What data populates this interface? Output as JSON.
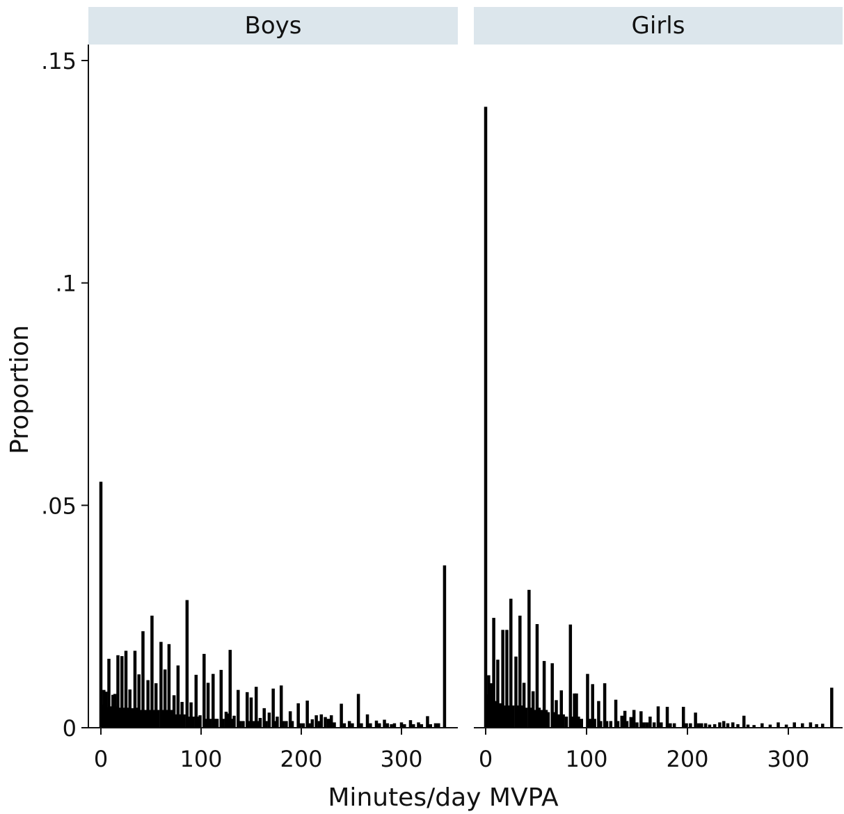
{
  "chart_data": {
    "type": "bar",
    "ylabel": "Proportion",
    "xlabel": "Minutes/day MVPA",
    "ylim": [
      0,
      0.15
    ],
    "yticks": [
      {
        "value": 0,
        "label": "0"
      },
      {
        "value": 0.05,
        "label": ".05"
      },
      {
        "value": 0.1,
        "label": ".1"
      },
      {
        "value": 0.15,
        "label": ".15"
      }
    ],
    "xlim": [
      -8,
      352
    ],
    "xticks": [
      {
        "value": 0,
        "label": "0"
      },
      {
        "value": 100,
        "label": "100"
      },
      {
        "value": 200,
        "label": "200"
      },
      {
        "value": 300,
        "label": "300"
      }
    ],
    "bar_color": "#000000",
    "strip_color": "#dce6ec",
    "grid": false,
    "panels": [
      {
        "name": "Boys",
        "series": [
          {
            "x": 0,
            "y": 0.0553
          },
          {
            "x": 1,
            "y": 0.0049
          },
          {
            "x": 2,
            "y": 0.0052
          },
          {
            "x": 3,
            "y": 0.0085
          },
          {
            "x": 4,
            "y": 0.0048
          },
          {
            "x": 5,
            "y": 0.0081
          },
          {
            "x": 6,
            "y": 0.0045
          },
          {
            "x": 7,
            "y": 0.0046
          },
          {
            "x": 8,
            "y": 0.0155
          },
          {
            "x": 10,
            "y": 0.0048
          },
          {
            "x": 12,
            "y": 0.0074
          },
          {
            "x": 13,
            "y": 0.0045
          },
          {
            "x": 14,
            "y": 0.0076
          },
          {
            "x": 16,
            "y": 0.0048
          },
          {
            "x": 17,
            "y": 0.0163
          },
          {
            "x": 19,
            "y": 0.0045
          },
          {
            "x": 21,
            "y": 0.0161
          },
          {
            "x": 23,
            "y": 0.0045
          },
          {
            "x": 25,
            "y": 0.0173
          },
          {
            "x": 27,
            "y": 0.0045
          },
          {
            "x": 29,
            "y": 0.0086
          },
          {
            "x": 30,
            "y": 0.004
          },
          {
            "x": 32,
            "y": 0.0044
          },
          {
            "x": 34,
            "y": 0.0173
          },
          {
            "x": 36,
            "y": 0.0045
          },
          {
            "x": 38,
            "y": 0.012
          },
          {
            "x": 40,
            "y": 0.004
          },
          {
            "x": 42,
            "y": 0.0217
          },
          {
            "x": 44,
            "y": 0.004
          },
          {
            "x": 47,
            "y": 0.0107
          },
          {
            "x": 49,
            "y": 0.004
          },
          {
            "x": 51,
            "y": 0.0252
          },
          {
            "x": 53,
            "y": 0.004
          },
          {
            "x": 55,
            "y": 0.01
          },
          {
            "x": 57,
            "y": 0.004
          },
          {
            "x": 60,
            "y": 0.0193
          },
          {
            "x": 62,
            "y": 0.004
          },
          {
            "x": 64,
            "y": 0.0131
          },
          {
            "x": 66,
            "y": 0.004
          },
          {
            "x": 68,
            "y": 0.0188
          },
          {
            "x": 70,
            "y": 0.004
          },
          {
            "x": 73,
            "y": 0.0073
          },
          {
            "x": 75,
            "y": 0.003
          },
          {
            "x": 77,
            "y": 0.014
          },
          {
            "x": 79,
            "y": 0.003
          },
          {
            "x": 81,
            "y": 0.0058
          },
          {
            "x": 83,
            "y": 0.003
          },
          {
            "x": 86,
            "y": 0.0287
          },
          {
            "x": 88,
            "y": 0.0025
          },
          {
            "x": 90,
            "y": 0.0057
          },
          {
            "x": 92,
            "y": 0.0025
          },
          {
            "x": 95,
            "y": 0.0119
          },
          {
            "x": 97,
            "y": 0.0025
          },
          {
            "x": 99,
            "y": 0.0028
          },
          {
            "x": 103,
            "y": 0.0166
          },
          {
            "x": 105,
            "y": 0.002
          },
          {
            "x": 107,
            "y": 0.0101
          },
          {
            "x": 109,
            "y": 0.002
          },
          {
            "x": 112,
            "y": 0.0121
          },
          {
            "x": 114,
            "y": 0.002
          },
          {
            "x": 116,
            "y": 0.002
          },
          {
            "x": 120,
            "y": 0.013
          },
          {
            "x": 122,
            "y": 0.002
          },
          {
            "x": 125,
            "y": 0.0036
          },
          {
            "x": 127,
            "y": 0.0032
          },
          {
            "x": 129,
            "y": 0.0175
          },
          {
            "x": 131,
            "y": 0.002
          },
          {
            "x": 133,
            "y": 0.0027
          },
          {
            "x": 137,
            "y": 0.0085
          },
          {
            "x": 139,
            "y": 0.0015
          },
          {
            "x": 142,
            "y": 0.0015
          },
          {
            "x": 146,
            "y": 0.008
          },
          {
            "x": 148,
            "y": 0.0015
          },
          {
            "x": 150,
            "y": 0.0068
          },
          {
            "x": 152,
            "y": 0.0015
          },
          {
            "x": 155,
            "y": 0.0092
          },
          {
            "x": 157,
            "y": 0.0015
          },
          {
            "x": 159,
            "y": 0.0022
          },
          {
            "x": 163,
            "y": 0.0044
          },
          {
            "x": 165,
            "y": 0.0015
          },
          {
            "x": 168,
            "y": 0.0034
          },
          {
            "x": 172,
            "y": 0.0088
          },
          {
            "x": 174,
            "y": 0.0015
          },
          {
            "x": 176,
            "y": 0.0025
          },
          {
            "x": 180,
            "y": 0.0095
          },
          {
            "x": 182,
            "y": 0.0015
          },
          {
            "x": 185,
            "y": 0.0015
          },
          {
            "x": 189,
            "y": 0.0037
          },
          {
            "x": 191,
            "y": 0.0015
          },
          {
            "x": 197,
            "y": 0.0055
          },
          {
            "x": 199,
            "y": 0.001
          },
          {
            "x": 202,
            "y": 0.001
          },
          {
            "x": 206,
            "y": 0.0061
          },
          {
            "x": 208,
            "y": 0.001
          },
          {
            "x": 211,
            "y": 0.0019
          },
          {
            "x": 215,
            "y": 0.0028
          },
          {
            "x": 218,
            "y": 0.0015
          },
          {
            "x": 220,
            "y": 0.003
          },
          {
            "x": 224,
            "y": 0.0024
          },
          {
            "x": 227,
            "y": 0.002
          },
          {
            "x": 230,
            "y": 0.0028
          },
          {
            "x": 233,
            "y": 0.0012
          },
          {
            "x": 240,
            "y": 0.0054
          },
          {
            "x": 243,
            "y": 0.001
          },
          {
            "x": 248,
            "y": 0.0015
          },
          {
            "x": 251,
            "y": 0.001
          },
          {
            "x": 257,
            "y": 0.0076
          },
          {
            "x": 260,
            "y": 0.001
          },
          {
            "x": 266,
            "y": 0.003
          },
          {
            "x": 269,
            "y": 0.001
          },
          {
            "x": 275,
            "y": 0.0016
          },
          {
            "x": 278,
            "y": 0.001
          },
          {
            "x": 283,
            "y": 0.0018
          },
          {
            "x": 286,
            "y": 0.001
          },
          {
            "x": 290,
            "y": 0.0008
          },
          {
            "x": 293,
            "y": 0.001
          },
          {
            "x": 300,
            "y": 0.0012
          },
          {
            "x": 303,
            "y": 0.0008
          },
          {
            "x": 309,
            "y": 0.0017
          },
          {
            "x": 312,
            "y": 0.0008
          },
          {
            "x": 317,
            "y": 0.0012
          },
          {
            "x": 320,
            "y": 0.0008
          },
          {
            "x": 326,
            "y": 0.0026
          },
          {
            "x": 329,
            "y": 0.0008
          },
          {
            "x": 334,
            "y": 0.001
          },
          {
            "x": 337,
            "y": 0.001
          },
          {
            "x": 343,
            "y": 0.0365
          }
        ]
      },
      {
        "name": "Girls",
        "series": [
          {
            "x": 0,
            "y": 0.1396
          },
          {
            "x": 1,
            "y": 0.0058
          },
          {
            "x": 2,
            "y": 0.0075
          },
          {
            "x": 3,
            "y": 0.0118
          },
          {
            "x": 4,
            "y": 0.007
          },
          {
            "x": 5,
            "y": 0.01
          },
          {
            "x": 6,
            "y": 0.0055
          },
          {
            "x": 7,
            "y": 0.0065
          },
          {
            "x": 8,
            "y": 0.0247
          },
          {
            "x": 10,
            "y": 0.006
          },
          {
            "x": 12,
            "y": 0.0153
          },
          {
            "x": 14,
            "y": 0.0055
          },
          {
            "x": 17,
            "y": 0.022
          },
          {
            "x": 19,
            "y": 0.005
          },
          {
            "x": 21,
            "y": 0.022
          },
          {
            "x": 23,
            "y": 0.005
          },
          {
            "x": 25,
            "y": 0.029
          },
          {
            "x": 27,
            "y": 0.005
          },
          {
            "x": 30,
            "y": 0.016
          },
          {
            "x": 32,
            "y": 0.005
          },
          {
            "x": 34,
            "y": 0.0252
          },
          {
            "x": 36,
            "y": 0.005
          },
          {
            "x": 38,
            "y": 0.0101
          },
          {
            "x": 40,
            "y": 0.0045
          },
          {
            "x": 43,
            "y": 0.031
          },
          {
            "x": 45,
            "y": 0.0045
          },
          {
            "x": 47,
            "y": 0.0082
          },
          {
            "x": 49,
            "y": 0.004
          },
          {
            "x": 51,
            "y": 0.0233
          },
          {
            "x": 53,
            "y": 0.0045
          },
          {
            "x": 55,
            "y": 0.004
          },
          {
            "x": 58,
            "y": 0.015
          },
          {
            "x": 60,
            "y": 0.004
          },
          {
            "x": 62,
            "y": 0.0035
          },
          {
            "x": 66,
            "y": 0.0145
          },
          {
            "x": 68,
            "y": 0.0035
          },
          {
            "x": 70,
            "y": 0.0062
          },
          {
            "x": 72,
            "y": 0.003
          },
          {
            "x": 75,
            "y": 0.0084
          },
          {
            "x": 77,
            "y": 0.003
          },
          {
            "x": 80,
            "y": 0.0025
          },
          {
            "x": 84,
            "y": 0.0232
          },
          {
            "x": 86,
            "y": 0.0025
          },
          {
            "x": 88,
            "y": 0.0077
          },
          {
            "x": 90,
            "y": 0.0077
          },
          {
            "x": 92,
            "y": 0.0025
          },
          {
            "x": 95,
            "y": 0.002
          },
          {
            "x": 101,
            "y": 0.0121
          },
          {
            "x": 103,
            "y": 0.002
          },
          {
            "x": 106,
            "y": 0.0098
          },
          {
            "x": 108,
            "y": 0.002
          },
          {
            "x": 112,
            "y": 0.006
          },
          {
            "x": 114,
            "y": 0.0015
          },
          {
            "x": 118,
            "y": 0.01
          },
          {
            "x": 120,
            "y": 0.0015
          },
          {
            "x": 124,
            "y": 0.0015
          },
          {
            "x": 129,
            "y": 0.0063
          },
          {
            "x": 131,
            "y": 0.0015
          },
          {
            "x": 135,
            "y": 0.0027
          },
          {
            "x": 138,
            "y": 0.0038
          },
          {
            "x": 140,
            "y": 0.0015
          },
          {
            "x": 144,
            "y": 0.0024
          },
          {
            "x": 147,
            "y": 0.004
          },
          {
            "x": 150,
            "y": 0.0012
          },
          {
            "x": 154,
            "y": 0.0037
          },
          {
            "x": 157,
            "y": 0.0012
          },
          {
            "x": 160,
            "y": 0.0012
          },
          {
            "x": 163,
            "y": 0.0025
          },
          {
            "x": 167,
            "y": 0.0012
          },
          {
            "x": 171,
            "y": 0.0048
          },
          {
            "x": 174,
            "y": 0.0012
          },
          {
            "x": 180,
            "y": 0.0047
          },
          {
            "x": 183,
            "y": 0.001
          },
          {
            "x": 187,
            "y": 0.001
          },
          {
            "x": 196,
            "y": 0.0047
          },
          {
            "x": 199,
            "y": 0.001
          },
          {
            "x": 203,
            "y": 0.001
          },
          {
            "x": 208,
            "y": 0.0034
          },
          {
            "x": 211,
            "y": 0.001
          },
          {
            "x": 214,
            "y": 0.001
          },
          {
            "x": 218,
            "y": 0.001
          },
          {
            "x": 222,
            "y": 0.0007
          },
          {
            "x": 227,
            "y": 0.0008
          },
          {
            "x": 232,
            "y": 0.0012
          },
          {
            "x": 236,
            "y": 0.0015
          },
          {
            "x": 240,
            "y": 0.001
          },
          {
            "x": 245,
            "y": 0.0012
          },
          {
            "x": 250,
            "y": 0.0008
          },
          {
            "x": 256,
            "y": 0.0027
          },
          {
            "x": 260,
            "y": 0.0007
          },
          {
            "x": 266,
            "y": 0.0006
          },
          {
            "x": 274,
            "y": 0.001
          },
          {
            "x": 282,
            "y": 0.0007
          },
          {
            "x": 290,
            "y": 0.0012
          },
          {
            "x": 298,
            "y": 0.0007
          },
          {
            "x": 306,
            "y": 0.0012
          },
          {
            "x": 314,
            "y": 0.001
          },
          {
            "x": 322,
            "y": 0.0012
          },
          {
            "x": 328,
            "y": 0.0008
          },
          {
            "x": 334,
            "y": 0.0009
          },
          {
            "x": 343,
            "y": 0.009
          }
        ]
      }
    ]
  }
}
